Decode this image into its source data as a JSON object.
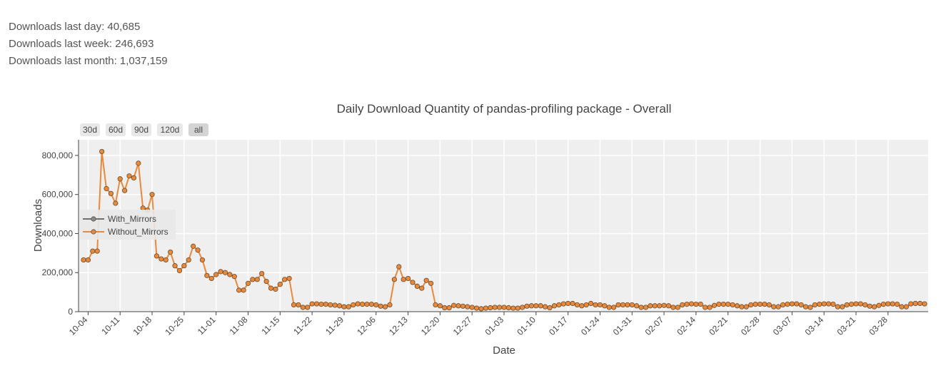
{
  "stats": {
    "last_day": "Downloads last day: 40,685",
    "last_week": "Downloads last week: 246,693",
    "last_month": "Downloads last month: 1,037,159"
  },
  "range_selector": {
    "buttons": [
      {
        "label": "30d",
        "active": false
      },
      {
        "label": "60d",
        "active": false
      },
      {
        "label": "90d",
        "active": false
      },
      {
        "label": "120d",
        "active": false
      },
      {
        "label": "all",
        "active": true
      }
    ]
  },
  "chart_data": {
    "type": "line",
    "title": "Daily Download Quantity of pandas-profiling package - Overall",
    "xlabel": "Date",
    "ylabel": "Downloads",
    "start_date": "2019-10-03",
    "x_tick_labels": [
      "10-04",
      "10-11",
      "10-18",
      "10-25",
      "11-01",
      "11-08",
      "11-15",
      "11-22",
      "11-29",
      "12-06",
      "12-13",
      "12-20",
      "12-27",
      "01-03",
      "01-10",
      "01-17",
      "01-24",
      "01-31",
      "02-07",
      "02-14",
      "02-21",
      "02-28",
      "03-07",
      "03-14",
      "03-21",
      "03-28"
    ],
    "y_tick_labels": [
      "0",
      "200,000",
      "400,000",
      "600,000",
      "800,000"
    ],
    "y_ticks": [
      0,
      200000,
      400000,
      600000,
      800000
    ],
    "ylim": [
      0,
      880000
    ],
    "grid": true,
    "legend_position": "middle-left",
    "series": [
      {
        "name": "With_Mirrors",
        "color": "#6e6e6e",
        "marker_color": "#8a8a8a",
        "values": []
      },
      {
        "name": "Without_Mirrors",
        "color": "#e8893c",
        "marker_color": "#e8893c",
        "values": [
          265000,
          265000,
          310000,
          310000,
          820000,
          630000,
          605000,
          555000,
          680000,
          620000,
          695000,
          685000,
          760000,
          530000,
          520000,
          600000,
          285000,
          270000,
          265000,
          305000,
          235000,
          210000,
          235000,
          265000,
          335000,
          315000,
          265000,
          185000,
          170000,
          190000,
          205000,
          200000,
          190000,
          180000,
          110000,
          110000,
          145000,
          165000,
          165000,
          195000,
          155000,
          120000,
          115000,
          140000,
          165000,
          170000,
          35000,
          35000,
          22000,
          22000,
          40000,
          40000,
          38000,
          38000,
          35000,
          33000,
          30000,
          25000,
          25000,
          35000,
          40000,
          38000,
          38000,
          38000,
          35000,
          28000,
          25000,
          35000,
          165000,
          230000,
          165000,
          170000,
          150000,
          130000,
          120000,
          160000,
          145000,
          35000,
          30000,
          20000,
          20000,
          32000,
          30000,
          28000,
          25000,
          22000,
          18000,
          15000,
          18000,
          20000,
          22000,
          22000,
          22000,
          20000,
          18000,
          18000,
          22000,
          28000,
          30000,
          30000,
          30000,
          25000,
          20000,
          30000,
          35000,
          40000,
          42000,
          42000,
          35000,
          30000,
          35000,
          42000,
          35000,
          35000,
          30000,
          22000,
          22000,
          35000,
          35000,
          35000,
          35000,
          30000,
          22000,
          22000,
          30000,
          30000,
          30000,
          32000,
          30000,
          22000,
          22000,
          35000,
          38000,
          40000,
          38000,
          38000,
          22000,
          22000,
          32000,
          38000,
          38000,
          38000,
          35000,
          30000,
          25000,
          25000,
          35000,
          38000,
          38000,
          38000,
          35000,
          25000,
          25000,
          35000,
          38000,
          40000,
          40000,
          35000,
          25000,
          22000,
          35000,
          38000,
          40000,
          40000,
          38000,
          25000,
          25000,
          35000,
          38000,
          40000,
          40000,
          35000,
          28000,
          25000,
          32000,
          38000,
          40000,
          40000,
          38000,
          25000,
          25000,
          40000,
          42000,
          42000,
          40000
        ]
      }
    ]
  }
}
